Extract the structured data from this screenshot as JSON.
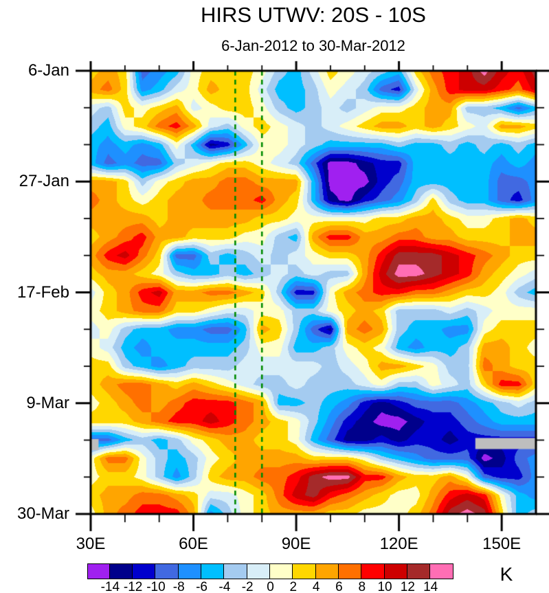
{
  "page": {
    "background": "#FFFFFF"
  },
  "chart_data": {
    "type": "heatmap",
    "title": "HIRS UTWV: 20S - 10S",
    "subtitle": "6-Jan-2012 to 30-Mar-2012",
    "x_axis": {
      "tick_labels": [
        "30E",
        "60E",
        "90E",
        "120E",
        "150E"
      ],
      "tick_degrees": [
        30,
        60,
        90,
        120,
        150
      ],
      "minor_tick_degrees": [
        40,
        50,
        70,
        80,
        100,
        110,
        130,
        140
      ],
      "range_deg": [
        30,
        160
      ]
    },
    "y_axis": {
      "tick_labels": [
        "6-Jan",
        "27-Jan",
        "17-Feb",
        "9-Mar",
        "30-Mar"
      ],
      "tick_days": [
        0,
        21,
        42,
        63,
        84
      ],
      "minor_tick_days": [
        7,
        14,
        28,
        35,
        49,
        56,
        70,
        77
      ],
      "range_day": [
        0,
        84
      ]
    },
    "colorbar": {
      "unit_label": "K",
      "boundary_labels": [
        "-14",
        "-12",
        "-10",
        "-8",
        "-6",
        "-4",
        "-2",
        "0",
        "2",
        "4",
        "6",
        "8",
        "10",
        "12",
        "14"
      ],
      "levels": [
        -14,
        -12,
        -10,
        -8,
        -6,
        -4,
        -2,
        0,
        2,
        4,
        6,
        8,
        10,
        12,
        14
      ],
      "colors": [
        "#A020F0",
        "#00008B",
        "#0000CD",
        "#4169E1",
        "#1E90FF",
        "#00BFFF",
        "#A4CBF0",
        "#D8EEF8",
        "#FFFFC8",
        "#FFD700",
        "#FFA500",
        "#FF7000",
        "#FF0000",
        "#CD0000",
        "#A52A2A",
        "#FF6EB4"
      ]
    },
    "reference_lines": {
      "color": "#008B00",
      "style": "dashed",
      "degrees": [
        72.2,
        80.0
      ]
    },
    "missing_data": {
      "color": "#BEBEBE",
      "patches": [
        {
          "deg": [
            142.3,
            160.0
          ],
          "day": [
            69.6,
            71.7
          ]
        },
        {
          "deg": [
            30.0,
            32.3
          ],
          "day": [
            69.8,
            71.9
          ]
        }
      ]
    },
    "grid": {
      "units": "K",
      "degrees": [
        30,
        35,
        40,
        45,
        50,
        55,
        60,
        65,
        70,
        75,
        80,
        85,
        90,
        95,
        100,
        105,
        110,
        115,
        120,
        125,
        130,
        135,
        140,
        145,
        150,
        155,
        160
      ],
      "days": [
        0,
        3.5,
        7,
        10.5,
        14,
        17.5,
        21,
        24.5,
        28,
        31.5,
        35,
        38.5,
        42,
        45.5,
        49,
        52.5,
        56,
        59.5,
        63,
        66.5,
        70,
        73.5,
        77,
        80.5,
        84
      ],
      "values": [
        [
          3,
          5,
          3,
          -9,
          -7,
          -5,
          1,
          3,
          3,
          3,
          1,
          -3,
          -5,
          -1,
          3,
          1,
          -1,
          -3,
          -5,
          3,
          7,
          9,
          11,
          15,
          11,
          9,
          13
        ],
        [
          5,
          7,
          3,
          -7,
          -5,
          -1,
          1,
          5,
          3,
          3,
          -1,
          -5,
          -5,
          -3,
          1,
          -1,
          -3,
          -9,
          -11,
          -1,
          5,
          9,
          11,
          11,
          9,
          7,
          11
        ],
        [
          -1,
          -3,
          3,
          1,
          3,
          5,
          -1,
          1,
          3,
          3,
          1,
          -3,
          -5,
          -3,
          -1,
          -3,
          -1,
          1,
          1,
          3,
          5,
          5,
          -3,
          -3,
          -5,
          -9,
          -5
        ],
        [
          -3,
          -5,
          1,
          3,
          7,
          9,
          5,
          -1,
          -3,
          1,
          3,
          1,
          -1,
          -3,
          -1,
          1,
          3,
          5,
          5,
          3,
          5,
          3,
          1,
          -1,
          5,
          5,
          3
        ],
        [
          -5,
          -7,
          -5,
          -7,
          -5,
          1,
          -5,
          -13,
          -11,
          -5,
          1,
          1,
          -1,
          -3,
          -5,
          -5,
          -5,
          -5,
          -3,
          -5,
          -5,
          -3,
          -5,
          -3,
          -5,
          -3,
          -5
        ],
        [
          -5,
          -9,
          -7,
          -9,
          -9,
          -3,
          -1,
          1,
          3,
          3,
          1,
          -1,
          -3,
          -9,
          -15,
          -15,
          -13,
          -11,
          -11,
          -5,
          -5,
          -5,
          -5,
          -5,
          -7,
          -5,
          -7
        ],
        [
          5,
          5,
          3,
          -3,
          1,
          3,
          5,
          5,
          7,
          7,
          5,
          5,
          5,
          -5,
          -15,
          -15,
          -15,
          -11,
          -9,
          -5,
          -5,
          -5,
          -5,
          -5,
          -9,
          -9,
          -7
        ],
        [
          7,
          5,
          3,
          1,
          3,
          5,
          5,
          7,
          7,
          7,
          9,
          5,
          3,
          -5,
          -13,
          -15,
          -11,
          -9,
          -7,
          -3,
          3,
          -3,
          -5,
          -5,
          -9,
          -11,
          -7
        ],
        [
          5,
          5,
          5,
          5,
          3,
          5,
          5,
          5,
          5,
          5,
          3,
          3,
          1,
          1,
          1,
          1,
          1,
          3,
          3,
          5,
          5,
          3,
          1,
          1,
          3,
          5,
          3
        ],
        [
          3,
          5,
          7,
          9,
          5,
          5,
          3,
          3,
          3,
          1,
          1,
          -3,
          -5,
          5,
          9,
          9,
          5,
          5,
          7,
          7,
          5,
          5,
          3,
          3,
          3,
          5,
          5
        ],
        [
          5,
          9,
          11,
          7,
          3,
          -9,
          -9,
          -3,
          -5,
          -3,
          -1,
          -3,
          -1,
          1,
          3,
          3,
          5,
          9,
          13,
          13,
          13,
          11,
          9,
          7,
          5,
          3,
          3
        ],
        [
          3,
          5,
          5,
          3,
          1,
          -3,
          -5,
          -5,
          -3,
          -5,
          -3,
          -1,
          -3,
          -1,
          -3,
          -3,
          5,
          11,
          15,
          15,
          13,
          11,
          9,
          5,
          3,
          1,
          -1
        ],
        [
          -1,
          3,
          5,
          9,
          11,
          5,
          5,
          7,
          7,
          5,
          3,
          -3,
          -11,
          -11,
          1,
          5,
          7,
          9,
          9,
          7,
          7,
          5,
          3,
          3,
          1,
          -3,
          -5
        ],
        [
          1,
          3,
          5,
          7,
          7,
          3,
          3,
          1,
          -1,
          -1,
          1,
          1,
          -3,
          -3,
          1,
          3,
          5,
          3,
          -3,
          -3,
          -3,
          -1,
          -3,
          -1,
          1,
          1,
          1
        ],
        [
          -1,
          1,
          -3,
          -5,
          -5,
          -7,
          -7,
          -9,
          -9,
          -5,
          5,
          3,
          -3,
          -9,
          -13,
          5,
          7,
          5,
          -3,
          -5,
          -5,
          -7,
          -7,
          1,
          3,
          3,
          3
        ],
        [
          1,
          -1,
          -5,
          -7,
          -5,
          -5,
          -5,
          -5,
          -5,
          -3,
          1,
          1,
          -5,
          -5,
          -3,
          1,
          3,
          1,
          -5,
          -7,
          -5,
          -5,
          -3,
          5,
          5,
          3,
          1
        ],
        [
          3,
          3,
          -3,
          -5,
          -7,
          -5,
          -3,
          -3,
          -3,
          -1,
          -1,
          -1,
          -1,
          -1,
          -3,
          -1,
          1,
          5,
          5,
          3,
          1,
          -3,
          -3,
          7,
          5,
          3,
          3
        ],
        [
          3,
          5,
          7,
          7,
          5,
          3,
          5,
          3,
          1,
          -1,
          -3,
          -3,
          -1,
          -3,
          -3,
          -3,
          -1,
          1,
          -3,
          -3,
          1,
          -1,
          -3,
          3,
          9,
          9,
          3
        ],
        [
          1,
          3,
          5,
          7,
          5,
          7,
          9,
          9,
          9,
          7,
          5,
          -5,
          -5,
          -3,
          -5,
          -7,
          -11,
          -13,
          -11,
          -9,
          -9,
          -9,
          -7,
          -5,
          -3,
          -1,
          -3
        ],
        [
          3,
          3,
          3,
          5,
          7,
          9,
          9,
          11,
          9,
          7,
          5,
          3,
          1,
          -3,
          -7,
          -11,
          -13,
          -15,
          -15,
          -13,
          -11,
          -11,
          -9,
          -7,
          -5,
          -5,
          -5
        ],
        [
          null,
          -9,
          -5,
          -3,
          -5,
          -3,
          1,
          3,
          5,
          5,
          3,
          3,
          1,
          -5,
          -9,
          -13,
          -13,
          -11,
          -13,
          -11,
          -11,
          -13,
          -11,
          null,
          null,
          null,
          null
        ],
        [
          1,
          7,
          7,
          1,
          -3,
          -5,
          -3,
          1,
          3,
          5,
          5,
          5,
          5,
          3,
          3,
          3,
          1,
          -3,
          -5,
          -7,
          -9,
          -9,
          -9,
          -15,
          -13,
          -9,
          -7
        ],
        [
          1,
          3,
          3,
          1,
          -3,
          -7,
          -3,
          3,
          5,
          5,
          7,
          7,
          9,
          13,
          15,
          15,
          9,
          9,
          5,
          3,
          3,
          5,
          1,
          -9,
          -11,
          -11,
          -7
        ],
        [
          3,
          5,
          5,
          7,
          7,
          5,
          3,
          -1,
          -1,
          1,
          3,
          7,
          11,
          13,
          9,
          7,
          5,
          3,
          1,
          1,
          5,
          9,
          11,
          9,
          1,
          -5,
          -7
        ],
        [
          1,
          5,
          7,
          9,
          9,
          9,
          5,
          -7,
          -3,
          1,
          3,
          5,
          5,
          5,
          3,
          3,
          1,
          1,
          1,
          3,
          7,
          13,
          15,
          13,
          3,
          -5,
          -3
        ]
      ]
    }
  }
}
